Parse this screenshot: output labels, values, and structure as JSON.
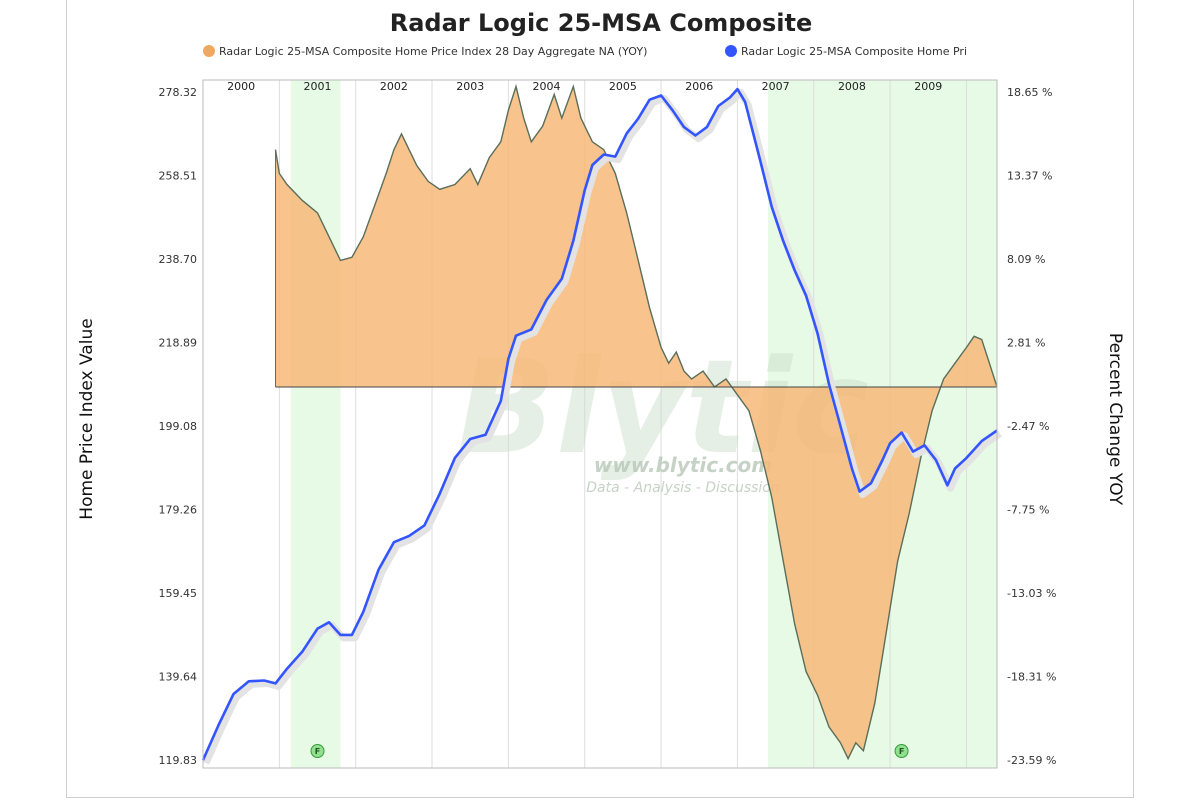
{
  "chart_data": {
    "type": "line",
    "title": "Radar Logic 25-MSA Composite",
    "legend": {
      "placement": "top",
      "entries": [
        {
          "label": "Radar Logic 25-MSA Composite Home Price Index 28 Day Aggregate NA (YOY)",
          "color": "#f0a860"
        },
        {
          "label": "Radar Logic 25-MSA Composite Home Pri",
          "color": "#3355ff"
        }
      ]
    },
    "y_left_label": "Home Price Index Value",
    "y_right_label": "Percent Change YOY",
    "y_left_ticks": [
      "278.32",
      "258.51",
      "238.70",
      "218.89",
      "199.08",
      "179.26",
      "159.45",
      "139.64",
      "119.83"
    ],
    "y_right_ticks": [
      "18.65 %",
      "13.37 %",
      "8.09 %",
      "2.81 %",
      "-2.47 %",
      "-7.75 %",
      "-13.03 %",
      "-18.31 %",
      "-23.59 %"
    ],
    "y_left_range": [
      119.83,
      278.32
    ],
    "y_right_range": [
      -23.59,
      18.65
    ],
    "x_range": [
      2000.0,
      2010.4
    ],
    "years": [
      "2000",
      "2001",
      "2002",
      "2003",
      "2004",
      "2005",
      "2006",
      "2007",
      "2008",
      "2009"
    ],
    "recessions": [
      [
        2001.15,
        2001.8
      ],
      [
        2007.4,
        2010.4
      ]
    ],
    "event_markers": [
      {
        "label": "F",
        "x": 2001.5
      },
      {
        "label": "F",
        "x": 2009.15
      }
    ],
    "grid": "vertical-year-lines",
    "watermark": {
      "logo": "Blytic",
      "url": "www.blytic.com",
      "tagline": "Data - Analysis - Discussion"
    },
    "series": [
      {
        "name": "Radar Logic 25-MSA Composite Home Pri",
        "axis": "left",
        "color": "#3355ff",
        "style": "line",
        "points": [
          [
            2000.0,
            119.8
          ],
          [
            2000.2,
            128.0
          ],
          [
            2000.4,
            135.5
          ],
          [
            2000.6,
            138.5
          ],
          [
            2000.8,
            138.7
          ],
          [
            2000.95,
            138.0
          ],
          [
            2001.1,
            141.5
          ],
          [
            2001.3,
            145.5
          ],
          [
            2001.5,
            151.0
          ],
          [
            2001.65,
            152.5
          ],
          [
            2001.8,
            149.5
          ],
          [
            2001.95,
            149.5
          ],
          [
            2002.1,
            155.0
          ],
          [
            2002.3,
            165.0
          ],
          [
            2002.5,
            171.5
          ],
          [
            2002.7,
            173.0
          ],
          [
            2002.9,
            175.5
          ],
          [
            2003.1,
            183.0
          ],
          [
            2003.3,
            191.5
          ],
          [
            2003.5,
            196.0
          ],
          [
            2003.7,
            197.0
          ],
          [
            2003.9,
            205.0
          ],
          [
            2004.0,
            215.0
          ],
          [
            2004.1,
            220.5
          ],
          [
            2004.3,
            222.0
          ],
          [
            2004.5,
            229.0
          ],
          [
            2004.7,
            234.0
          ],
          [
            2004.85,
            243.0
          ],
          [
            2005.0,
            255.0
          ],
          [
            2005.1,
            261.0
          ],
          [
            2005.25,
            263.5
          ],
          [
            2005.4,
            263.0
          ],
          [
            2005.55,
            268.5
          ],
          [
            2005.7,
            272.0
          ],
          [
            2005.85,
            276.5
          ],
          [
            2006.0,
            277.5
          ],
          [
            2006.15,
            274.0
          ],
          [
            2006.3,
            270.0
          ],
          [
            2006.45,
            268.0
          ],
          [
            2006.6,
            270.0
          ],
          [
            2006.75,
            275.0
          ],
          [
            2006.9,
            277.0
          ],
          [
            2007.0,
            279.0
          ],
          [
            2007.1,
            276.0
          ],
          [
            2007.3,
            262.0
          ],
          [
            2007.45,
            251.0
          ],
          [
            2007.6,
            243.0
          ],
          [
            2007.75,
            236.0
          ],
          [
            2007.9,
            230.0
          ],
          [
            2008.05,
            221.0
          ],
          [
            2008.2,
            209.0
          ],
          [
            2008.35,
            199.0
          ],
          [
            2008.5,
            189.0
          ],
          [
            2008.6,
            183.5
          ],
          [
            2008.75,
            185.5
          ],
          [
            2008.9,
            191.0
          ],
          [
            2009.0,
            195.0
          ],
          [
            2009.15,
            197.5
          ],
          [
            2009.3,
            193.0
          ],
          [
            2009.45,
            194.5
          ],
          [
            2009.6,
            191.0
          ],
          [
            2009.75,
            185.0
          ],
          [
            2009.85,
            189.0
          ],
          [
            2010.0,
            191.5
          ],
          [
            2010.2,
            195.5
          ],
          [
            2010.4,
            198.0
          ]
        ]
      },
      {
        "name": "Radar Logic 25-MSA Composite Home Price Index 28 Day Aggregate NA (YOY)",
        "axis": "right",
        "color": "#f0a860",
        "style": "area",
        "baseline": 0,
        "points": [
          [
            2000.95,
            15.0
          ],
          [
            2001.0,
            13.5
          ],
          [
            2001.1,
            12.8
          ],
          [
            2001.3,
            11.8
          ],
          [
            2001.5,
            11.0
          ],
          [
            2001.65,
            9.5
          ],
          [
            2001.8,
            8.0
          ],
          [
            2001.95,
            8.2
          ],
          [
            2002.1,
            9.5
          ],
          [
            2002.25,
            11.5
          ],
          [
            2002.4,
            13.5
          ],
          [
            2002.5,
            15.0
          ],
          [
            2002.6,
            16.0
          ],
          [
            2002.7,
            15.0
          ],
          [
            2002.8,
            14.0
          ],
          [
            2002.95,
            13.0
          ],
          [
            2003.1,
            12.5
          ],
          [
            2003.3,
            12.8
          ],
          [
            2003.5,
            13.8
          ],
          [
            2003.6,
            12.8
          ],
          [
            2003.75,
            14.5
          ],
          [
            2003.9,
            15.5
          ],
          [
            2004.0,
            17.5
          ],
          [
            2004.1,
            19.0
          ],
          [
            2004.2,
            17.0
          ],
          [
            2004.3,
            15.5
          ],
          [
            2004.45,
            16.5
          ],
          [
            2004.6,
            18.5
          ],
          [
            2004.7,
            17.0
          ],
          [
            2004.85,
            19.0
          ],
          [
            2004.95,
            17.0
          ],
          [
            2005.1,
            15.5
          ],
          [
            2005.25,
            15.0
          ],
          [
            2005.4,
            13.5
          ],
          [
            2005.55,
            11.0
          ],
          [
            2005.7,
            8.0
          ],
          [
            2005.85,
            5.0
          ],
          [
            2006.0,
            2.5
          ],
          [
            2006.1,
            1.5
          ],
          [
            2006.2,
            2.2
          ],
          [
            2006.3,
            1.0
          ],
          [
            2006.4,
            0.5
          ],
          [
            2006.55,
            1.0
          ],
          [
            2006.7,
            0.0
          ],
          [
            2006.85,
            0.5
          ],
          [
            2007.0,
            -0.5
          ],
          [
            2007.15,
            -1.5
          ],
          [
            2007.3,
            -4.0
          ],
          [
            2007.45,
            -7.0
          ],
          [
            2007.6,
            -11.0
          ],
          [
            2007.75,
            -15.0
          ],
          [
            2007.9,
            -18.0
          ],
          [
            2008.05,
            -19.5
          ],
          [
            2008.2,
            -21.5
          ],
          [
            2008.35,
            -22.5
          ],
          [
            2008.45,
            -23.5
          ],
          [
            2008.55,
            -22.5
          ],
          [
            2008.65,
            -23.0
          ],
          [
            2008.8,
            -20.0
          ],
          [
            2008.95,
            -15.5
          ],
          [
            2009.1,
            -11.0
          ],
          [
            2009.25,
            -8.0
          ],
          [
            2009.4,
            -4.5
          ],
          [
            2009.55,
            -1.5
          ],
          [
            2009.7,
            0.5
          ],
          [
            2009.85,
            1.5
          ],
          [
            2010.0,
            2.5
          ],
          [
            2010.1,
            3.2
          ],
          [
            2010.2,
            3.0
          ],
          [
            2010.3,
            1.5
          ],
          [
            2010.4,
            0.0
          ]
        ]
      }
    ]
  }
}
